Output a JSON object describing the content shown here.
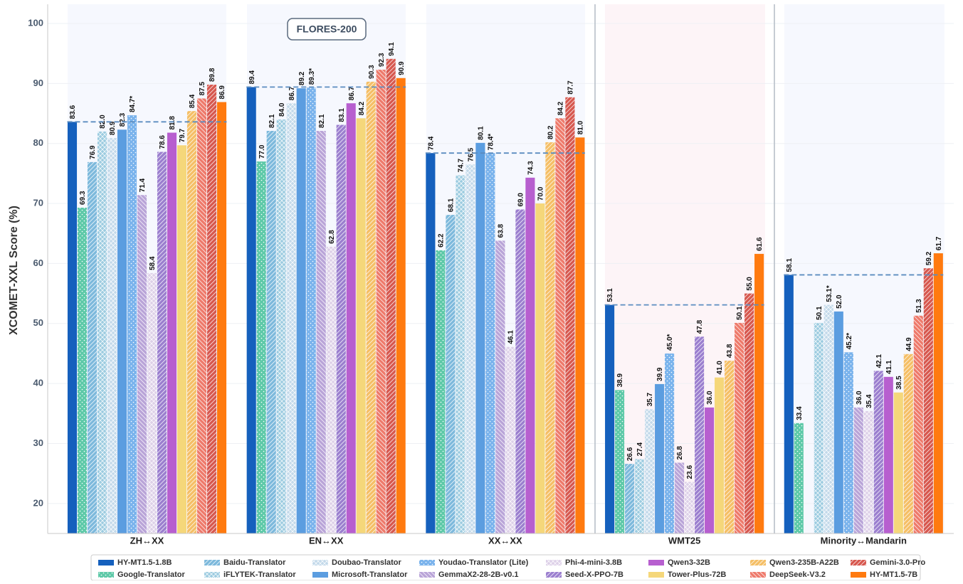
{
  "chart_data": {
    "type": "bar",
    "y_label": "XCOMET-XXL Score (%)",
    "annotation": "FLORES-200",
    "categories": [
      "ZH↔XX",
      "EN↔XX",
      "XX↔XX",
      "WMT25",
      "Minority↔Mandarin"
    ],
    "ylim": [
      15,
      103.2
    ],
    "yticks": [
      20,
      30,
      40,
      50,
      60,
      70,
      80,
      90,
      100
    ],
    "grid": true,
    "legend": "bottom",
    "series": [
      {
        "name": "HY-MT1.5-1.8B",
        "color": "#1560bd",
        "hatch": null,
        "values": [
          83.6,
          89.4,
          78.4,
          53.1,
          58.1
        ],
        "value_labels": [
          "83.6",
          "89.4",
          "78.4",
          "53.1",
          "58.1"
        ]
      },
      {
        "name": "Google-Translator",
        "color": "#5ec9a8",
        "hatch": "dots",
        "values": [
          69.3,
          77.0,
          62.2,
          38.9,
          33.4
        ],
        "value_labels": [
          "69.3",
          "77.0",
          "62.2",
          "38.9",
          "33.4"
        ]
      },
      {
        "name": "Baidu-Translator",
        "color": "#7db9dc",
        "hatch": "fwd",
        "values": [
          76.9,
          82.1,
          68.1,
          26.6,
          null
        ],
        "value_labels": [
          "76.9",
          "82.1",
          "68.1",
          "26.6",
          null
        ]
      },
      {
        "name": "iFLYTEK-Translator",
        "color": "#9ccbe0",
        "hatch": "cross",
        "values": [
          82.0,
          84.0,
          74.7,
          27.4,
          50.1
        ],
        "value_labels": [
          "82.0",
          "84.0",
          "74.7",
          "27.4",
          "50.1"
        ]
      },
      {
        "name": "Doubao-Translator",
        "color": "#c3d9ea",
        "hatch": "cross",
        "values": [
          80.9,
          86.7,
          76.5,
          35.7,
          53.1
        ],
        "value_labels": [
          "80.9",
          "86.7",
          "76.5",
          "35.7",
          "53.1*"
        ]
      },
      {
        "name": "Microsoft-Translator",
        "color": "#5b9de0",
        "hatch": null,
        "values": [
          82.3,
          89.2,
          80.1,
          39.9,
          52.0
        ],
        "value_labels": [
          "82.3",
          "89.2",
          "80.1",
          "39.9",
          "52.0"
        ]
      },
      {
        "name": "Youdao-Translator (Lite)",
        "color": "#7ab3ec",
        "hatch": "dots",
        "values": [
          84.7,
          89.3,
          78.4,
          45.0,
          45.2
        ],
        "value_labels": [
          "84.7*",
          "89.3*",
          "78.4*",
          "45.0*",
          "45.2*"
        ]
      },
      {
        "name": "GemmaX2-28-2B-v0.1",
        "color": "#b9a4d8",
        "hatch": "back",
        "values": [
          71.4,
          82.1,
          63.8,
          26.8,
          36.0
        ],
        "value_labels": [
          "71.4",
          "82.1",
          "63.8",
          "26.8",
          "36.0"
        ]
      },
      {
        "name": "Phi-4-mini-3.8B",
        "color": "#ddd0e8",
        "hatch": "cross",
        "values": [
          58.4,
          62.8,
          46.1,
          23.6,
          35.4
        ],
        "value_labels": [
          "58.4",
          "62.8",
          "46.1",
          "23.6",
          "35.4"
        ]
      },
      {
        "name": "Seed-X-PPO-7B",
        "color": "#9b7fcf",
        "hatch": "fwd",
        "values": [
          78.6,
          83.1,
          69.0,
          47.8,
          42.1
        ],
        "value_labels": [
          "78.6",
          "83.1",
          "69.0",
          "47.8",
          "42.1"
        ]
      },
      {
        "name": "Qwen3-32B",
        "color": "#b75fcf",
        "hatch": null,
        "values": [
          81.8,
          86.7,
          74.3,
          36.0,
          41.1
        ],
        "value_labels": [
          "81.8",
          "86.7",
          "74.3",
          "36.0",
          "41.1"
        ]
      },
      {
        "name": "Tower-Plus-72B",
        "color": "#f5d77a",
        "hatch": null,
        "values": [
          79.7,
          84.2,
          70.0,
          41.0,
          38.5
        ],
        "value_labels": [
          "79.7",
          "84.2",
          "70.0",
          "41.0",
          "38.5"
        ]
      },
      {
        "name": "Qwen3-235B-A22B",
        "color": "#f5bf66",
        "hatch": "fwd",
        "values": [
          85.4,
          90.3,
          80.2,
          43.8,
          44.9
        ],
        "value_labels": [
          "85.4",
          "90.3",
          "80.2",
          "43.8",
          "44.9"
        ]
      },
      {
        "name": "DeepSeek-V3.2",
        "color": "#ee7a6b",
        "hatch": "back",
        "values": [
          87.5,
          92.3,
          84.2,
          50.1,
          51.3
        ],
        "value_labels": [
          "87.5",
          "92.3",
          "84.2",
          "50.1",
          "51.3"
        ]
      },
      {
        "name": "Gemini-3.0-Pro",
        "color": "#d7584f",
        "hatch": "fwd",
        "values": [
          89.8,
          94.1,
          87.7,
          55.0,
          59.2
        ],
        "value_labels": [
          "89.8",
          "94.1",
          "87.7",
          "55.0",
          "59.2"
        ]
      },
      {
        "name": "HY-MT1.5-7B",
        "color": "#ff7a0f",
        "hatch": null,
        "values": [
          86.9,
          90.9,
          81.0,
          61.6,
          61.7
        ],
        "value_labels": [
          "86.9",
          "90.9",
          "81.0",
          "61.6",
          "61.7"
        ]
      }
    ]
  }
}
